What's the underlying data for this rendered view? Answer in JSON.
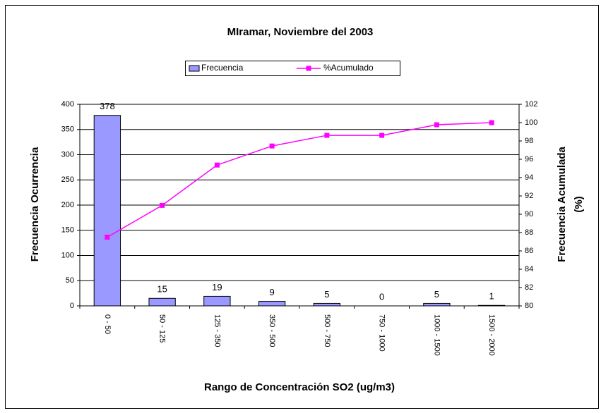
{
  "chart_data": {
    "type": "bar",
    "title": "MIramar, Noviembre del 2003",
    "xlabel": "Rango de Concentración SO2 (ug/m3)",
    "ylabel": "Frecuencia Ocurrencia",
    "y2label": [
      "Frecuencia Acumulada",
      "(%)"
    ],
    "categories": [
      "0 - 50",
      "50 - 125",
      "125 - 350",
      "350 - 500",
      "500 - 750",
      "750 - 1000",
      "1000 - 1500",
      "1500 - 2000"
    ],
    "series": [
      {
        "name": "Frecuencia",
        "type": "bar",
        "color": "#9999ff",
        "values": [
          378,
          15,
          19,
          9,
          5,
          0,
          5,
          1
        ]
      },
      {
        "name": "%Acumulado",
        "type": "line",
        "axis": "y2",
        "color": "#ff00ff",
        "values": [
          87.5,
          90.97,
          95.37,
          97.45,
          98.61,
          98.61,
          99.77,
          100
        ]
      }
    ],
    "ylim": [
      0,
      400
    ],
    "yticks": [
      0,
      50,
      100,
      150,
      200,
      250,
      300,
      350,
      400
    ],
    "y2lim": [
      80,
      102
    ],
    "y2ticks": [
      80,
      82,
      84,
      86,
      88,
      90,
      92,
      94,
      96,
      98,
      100,
      102
    ],
    "grid": true,
    "legend": "top"
  }
}
